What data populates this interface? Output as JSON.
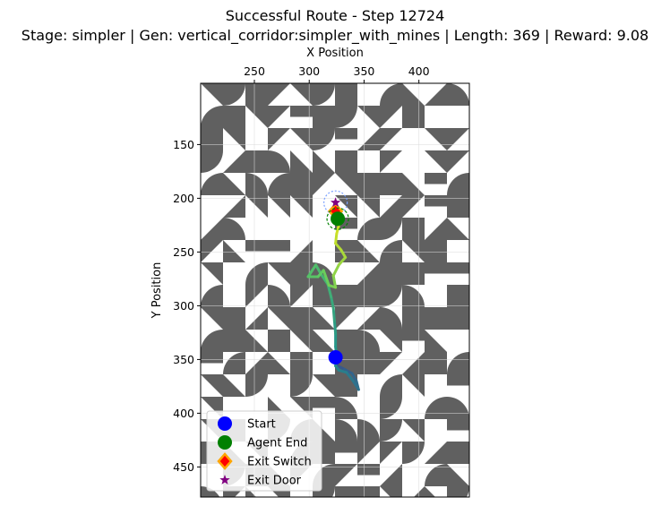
{
  "chart_data": {
    "type": "line",
    "title": "Successful Route - Step 12724",
    "subtitle": "Stage: simpler | Gen: vertical_corridor:simpler_with_mines | Length: 369 | Reward: 9.08",
    "xlabel": "X Position",
    "ylabel": "Y Position",
    "xlim": [
      201,
      446
    ],
    "ylim": [
      478,
      93
    ],
    "y_inverted": true,
    "x_axis_position": "top",
    "xticks": [
      250,
      300,
      350,
      400
    ],
    "yticks": [
      150,
      200,
      250,
      300,
      350,
      400,
      450
    ],
    "grid": true,
    "legend_position": "lower-left",
    "legend": [
      {
        "label": "Start",
        "marker": "circle",
        "color": "#0000ff"
      },
      {
        "label": "Agent End",
        "marker": "circle",
        "color": "#008000"
      },
      {
        "label": "Exit Switch",
        "marker": "diamond",
        "color": "#ff0000",
        "edge": "#ffa500"
      },
      {
        "label": "Exit Door",
        "marker": "star",
        "color": "#800080"
      }
    ],
    "start": {
      "x": 324,
      "y": 348
    },
    "agent_end": {
      "x": 326,
      "y": 219
    },
    "exit_switch": {
      "x": 324,
      "y": 212
    },
    "exit_door": {
      "x": 324,
      "y": 204
    },
    "route": [
      [
        324,
        349
      ],
      [
        326,
        356
      ],
      [
        332,
        359
      ],
      [
        339,
        363
      ],
      [
        343,
        370
      ],
      [
        345,
        378
      ],
      [
        340,
        370
      ],
      [
        334,
        362
      ],
      [
        327,
        360
      ],
      [
        324,
        356
      ],
      [
        325,
        348
      ],
      [
        324,
        338
      ],
      [
        324,
        326
      ],
      [
        323,
        314
      ],
      [
        322,
        302
      ],
      [
        320,
        292
      ],
      [
        317,
        280
      ],
      [
        311,
        271
      ],
      [
        306,
        262
      ],
      [
        299,
        273
      ],
      [
        308,
        273
      ],
      [
        313,
        267
      ],
      [
        318,
        281
      ],
      [
        324,
        283
      ],
      [
        322,
        272
      ],
      [
        327,
        262
      ],
      [
        333,
        255
      ],
      [
        329,
        248
      ],
      [
        324,
        242
      ],
      [
        325,
        233
      ],
      [
        327,
        225
      ],
      [
        326,
        219
      ]
    ],
    "colors": {
      "background": "#ffffff",
      "tile": "#606060",
      "grid": "#dcdcdc",
      "route_start": "#3b528b",
      "route_mid": "#21918c",
      "route_late": "#5ec962",
      "route_end": "#d9e31f"
    }
  }
}
